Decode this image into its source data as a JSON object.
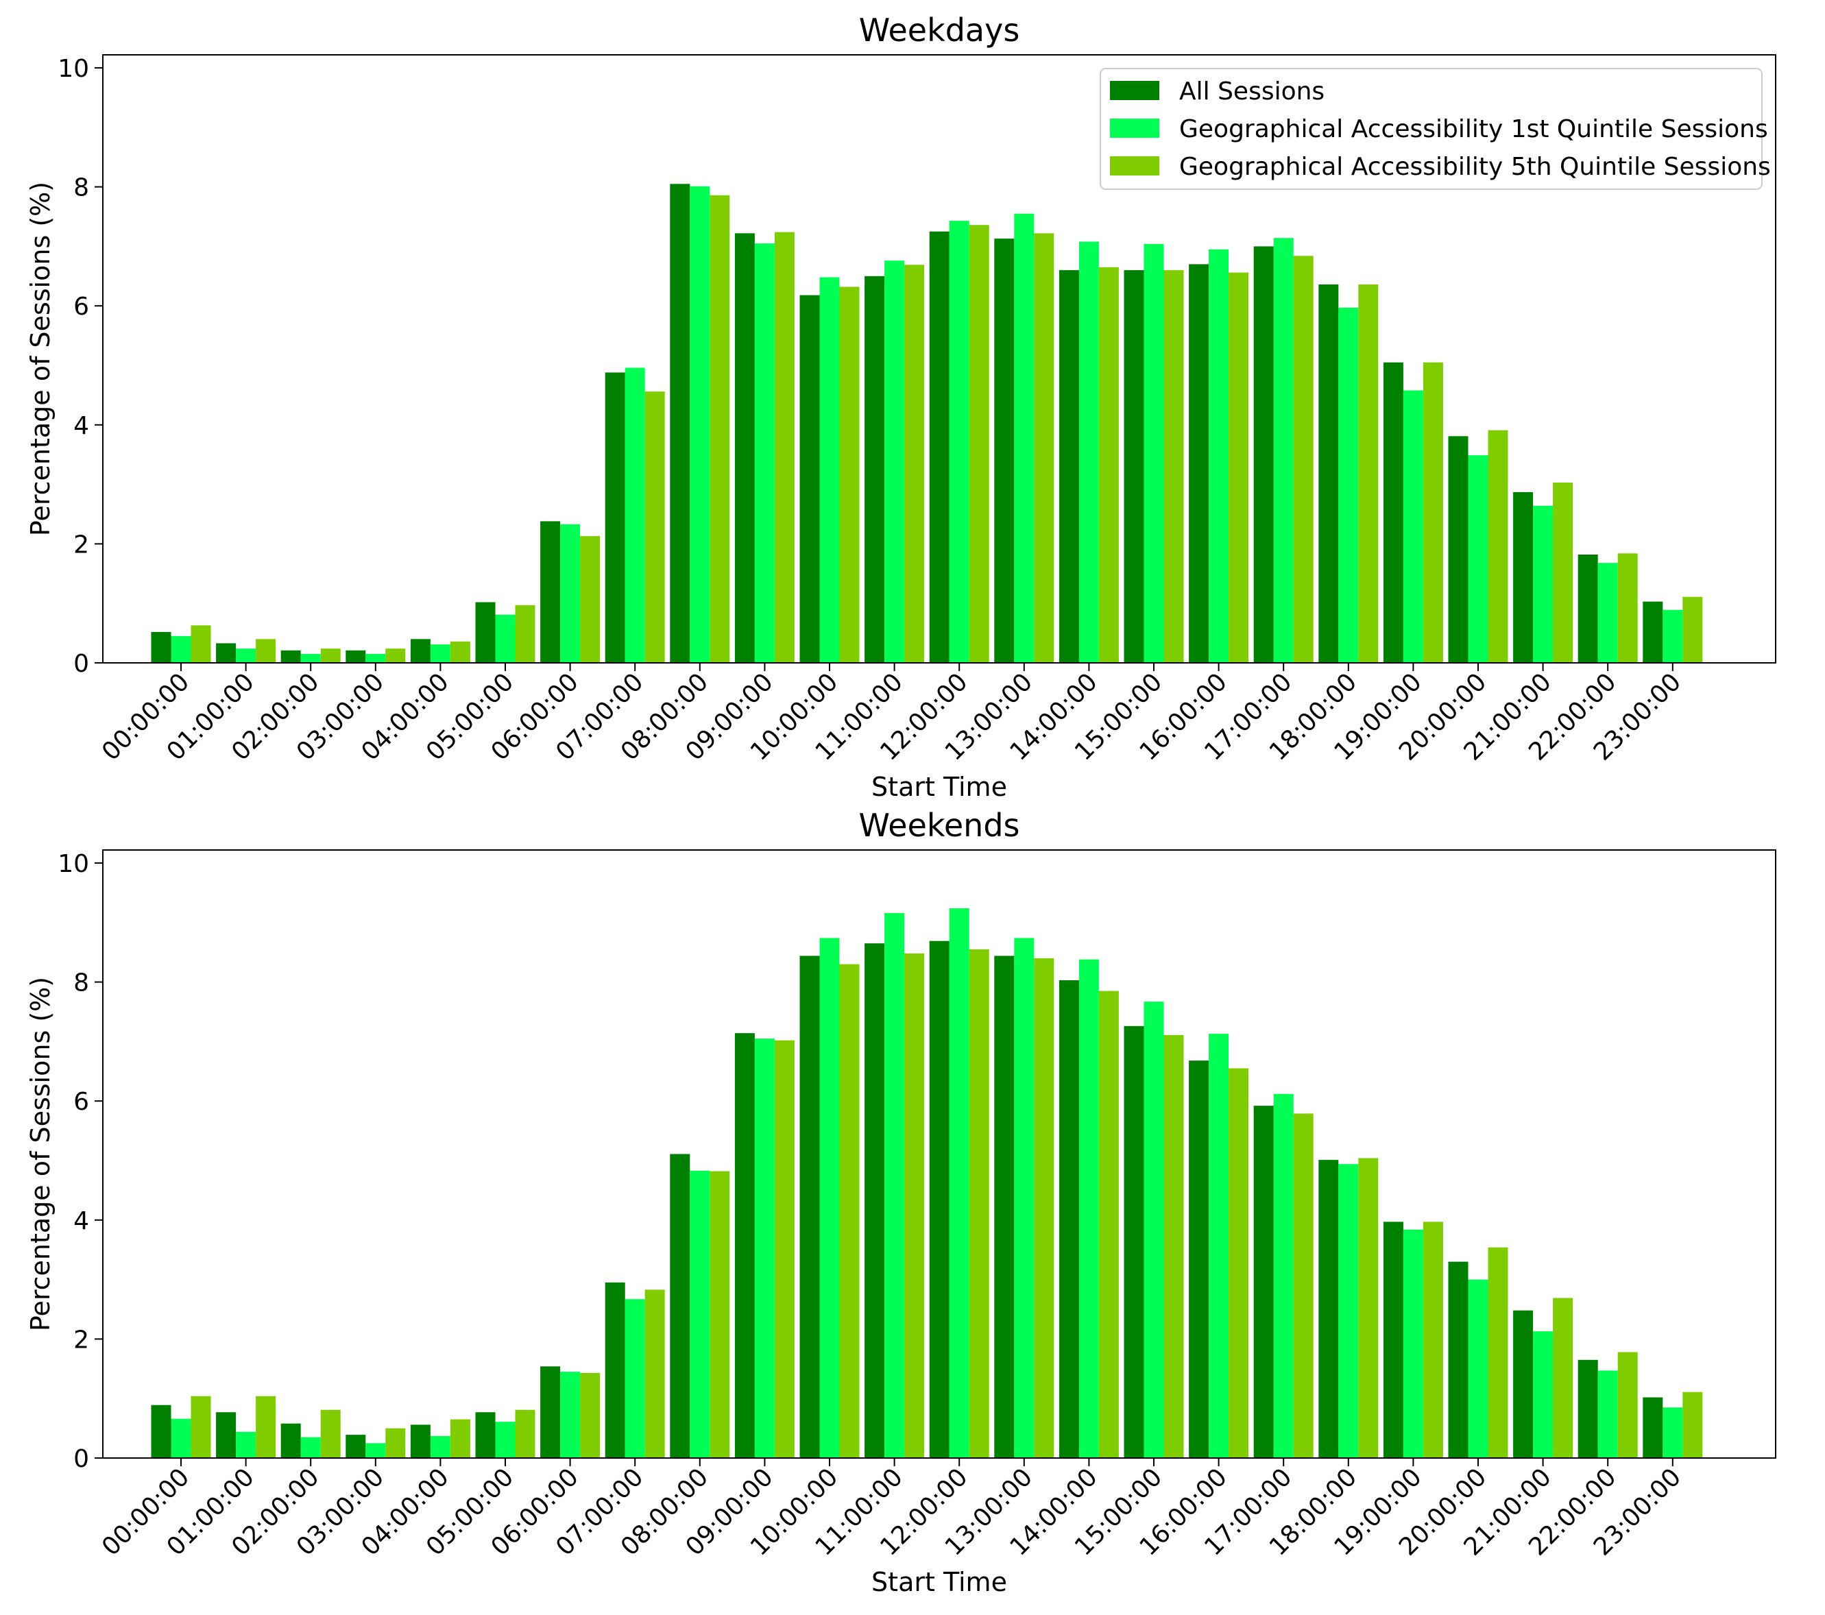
{
  "colors": {
    "all": "#008000",
    "q1": "#00ff55",
    "q5": "#7fcc00"
  },
  "legend": {
    "placement": "top-right",
    "entries": [
      "All Sessions",
      "Geographical Accessibility 1st Quintile Sessions",
      "Geographical Accessibility 5th Quintile Sessions"
    ]
  },
  "chart_data": [
    {
      "type": "bar",
      "title": "Weekdays",
      "xlabel": "Start Time",
      "ylabel": "Percentage of Sessions (%)",
      "ylim": [
        0,
        10.2
      ],
      "yticks": [
        "0",
        "2",
        "4",
        "6",
        "8",
        "10"
      ],
      "grid": false,
      "categories": [
        "00:00:00",
        "01:00:00",
        "02:00:00",
        "03:00:00",
        "04:00:00",
        "05:00:00",
        "06:00:00",
        "07:00:00",
        "08:00:00",
        "09:00:00",
        "10:00:00",
        "11:00:00",
        "12:00:00",
        "13:00:00",
        "14:00:00",
        "15:00:00",
        "16:00:00",
        "17:00:00",
        "18:00:00",
        "19:00:00",
        "20:00:00",
        "21:00:00",
        "22:00:00",
        "23:00:00"
      ],
      "series": [
        {
          "name": "All Sessions",
          "values": [
            0.52,
            0.33,
            0.21,
            0.21,
            0.4,
            1.02,
            2.38,
            4.88,
            8.05,
            7.22,
            6.18,
            6.5,
            7.25,
            7.13,
            6.6,
            6.6,
            6.7,
            7.0,
            6.36,
            5.05,
            3.81,
            2.87,
            1.82,
            1.03
          ]
        },
        {
          "name": "Geographical Accessibility 1st Quintile Sessions",
          "values": [
            0.45,
            0.24,
            0.15,
            0.15,
            0.31,
            0.81,
            2.33,
            4.96,
            8.01,
            7.05,
            6.48,
            6.76,
            7.43,
            7.55,
            7.08,
            7.04,
            6.95,
            7.14,
            5.97,
            4.58,
            3.49,
            2.64,
            1.68,
            0.89
          ]
        },
        {
          "name": "Geographical Accessibility 5th Quintile Sessions",
          "values": [
            0.63,
            0.4,
            0.24,
            0.24,
            0.36,
            0.97,
            2.13,
            4.56,
            7.86,
            7.24,
            6.32,
            6.69,
            7.36,
            7.22,
            6.65,
            6.6,
            6.56,
            6.84,
            6.36,
            5.05,
            3.91,
            3.03,
            1.84,
            1.11
          ]
        }
      ]
    },
    {
      "type": "bar",
      "title": "Weekends",
      "xlabel": "Start Time",
      "ylabel": "Percentage of Sessions (%)",
      "ylim": [
        0,
        10.2
      ],
      "yticks": [
        "0",
        "2",
        "4",
        "6",
        "8",
        "10"
      ],
      "grid": false,
      "categories": [
        "00:00:00",
        "01:00:00",
        "02:00:00",
        "03:00:00",
        "04:00:00",
        "05:00:00",
        "06:00:00",
        "07:00:00",
        "08:00:00",
        "09:00:00",
        "10:00:00",
        "11:00:00",
        "12:00:00",
        "13:00:00",
        "14:00:00",
        "15:00:00",
        "16:00:00",
        "17:00:00",
        "18:00:00",
        "19:00:00",
        "20:00:00",
        "21:00:00",
        "22:00:00",
        "23:00:00"
      ],
      "series": [
        {
          "name": "All Sessions",
          "values": [
            0.89,
            0.77,
            0.58,
            0.39,
            0.56,
            0.77,
            1.54,
            2.95,
            5.11,
            7.14,
            8.44,
            8.65,
            8.69,
            8.44,
            8.03,
            7.26,
            6.68,
            5.92,
            5.01,
            3.97,
            3.3,
            2.48,
            1.65,
            1.02
          ]
        },
        {
          "name": "Geographical Accessibility 1st Quintile Sessions",
          "values": [
            0.66,
            0.44,
            0.35,
            0.25,
            0.37,
            0.61,
            1.45,
            2.67,
            4.83,
            7.05,
            8.74,
            9.16,
            9.24,
            8.74,
            8.38,
            7.67,
            7.13,
            6.12,
            4.94,
            3.84,
            3.0,
            2.13,
            1.47,
            0.85
          ]
        },
        {
          "name": "Geographical Accessibility 5th Quintile Sessions",
          "values": [
            1.04,
            1.04,
            0.81,
            0.5,
            0.65,
            0.81,
            1.43,
            2.83,
            4.82,
            7.02,
            8.3,
            8.48,
            8.55,
            8.4,
            7.85,
            7.11,
            6.55,
            5.79,
            5.04,
            3.97,
            3.54,
            2.69,
            1.78,
            1.11
          ]
        }
      ]
    }
  ]
}
